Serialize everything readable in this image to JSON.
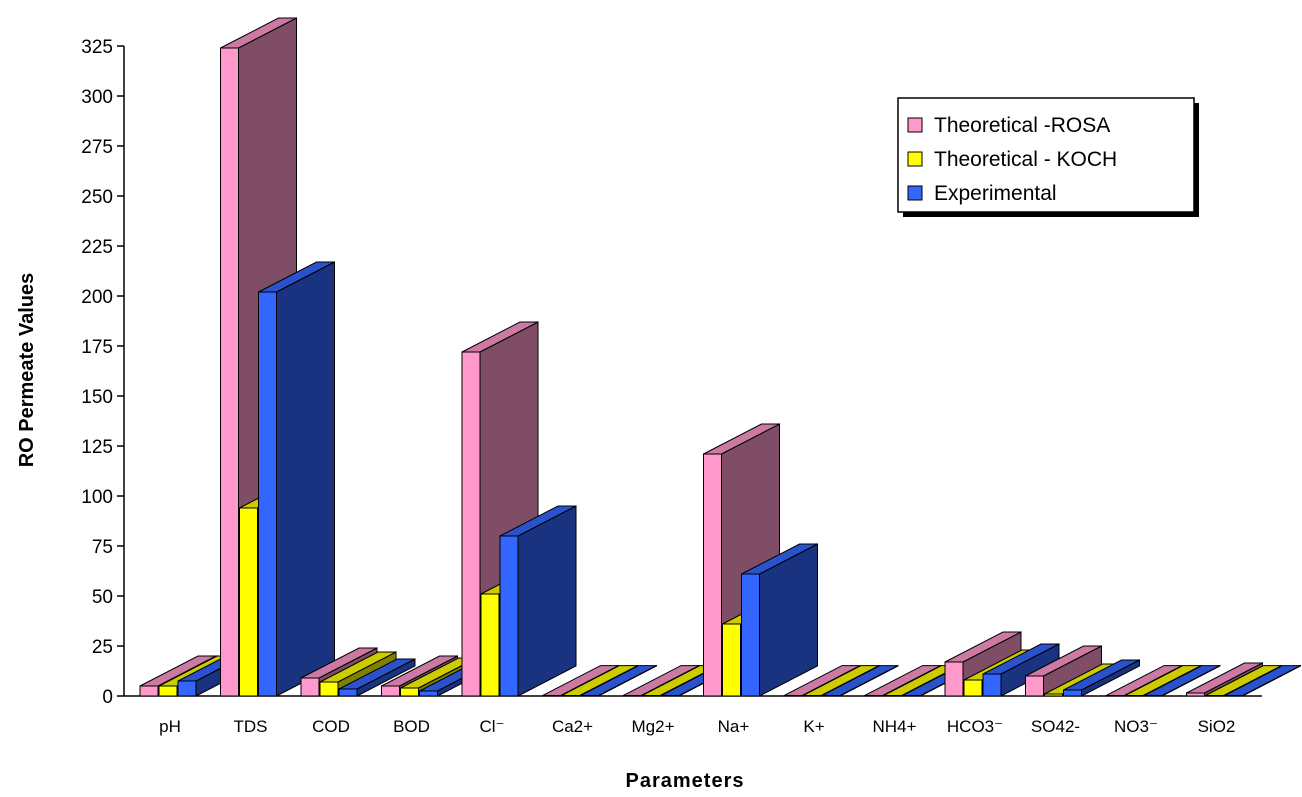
{
  "chart_data": {
    "type": "bar",
    "title": "",
    "xlabel": "Parameters",
    "ylabel": "RO Permeate Values",
    "ylim": [
      0,
      325
    ],
    "yticks": [
      0,
      25,
      50,
      75,
      100,
      125,
      150,
      175,
      200,
      225,
      250,
      275,
      300,
      325
    ],
    "grid": false,
    "legend_position": "top-right",
    "categories": [
      "pH",
      "TDS",
      "COD",
      "BOD",
      "Cl⁻",
      "Ca2+",
      "Mg2+",
      "Na+",
      "K+",
      "NH4+",
      "HCO3⁻",
      "SO42-",
      "NO3⁻",
      "SiO2"
    ],
    "series": [
      {
        "name": "Theoretical -ROSA",
        "color": "#ff99cc",
        "values": [
          5,
          324,
          9,
          5,
          172,
          0.2,
          0.2,
          121,
          0.2,
          0.2,
          17,
          10,
          0.2,
          1.5
        ]
      },
      {
        "name": "Theoretical - KOCH",
        "color": "#ffff00",
        "values": [
          5,
          94,
          7,
          4,
          51,
          0.2,
          0.2,
          36,
          0.2,
          0.2,
          8,
          1,
          0.2,
          0.2
        ]
      },
      {
        "name": "Experimental",
        "color": "#3366ff",
        "values": [
          7.5,
          202,
          3.5,
          2.5,
          80,
          0.2,
          0.2,
          61,
          0.2,
          0.2,
          11,
          3,
          0.2,
          0.2
        ]
      }
    ]
  }
}
